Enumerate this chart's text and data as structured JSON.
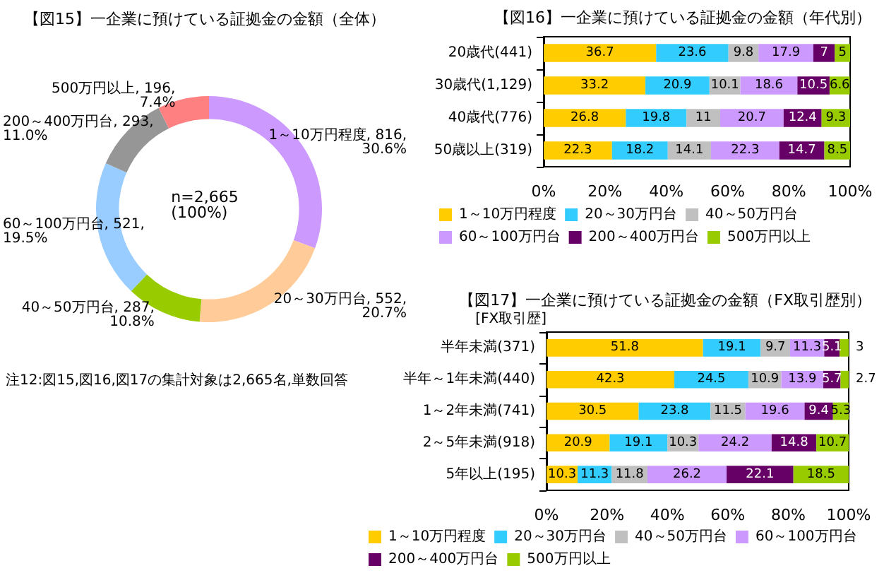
{
  "chart_data": [
    {
      "type": "donut",
      "title": "【図15】一企業に預けている証拠金の金額（全体）",
      "categories": [
        "1～10万円程度",
        "20～30万円台",
        "40～50万円台",
        "60～100万円台",
        "200～400万円台",
        "500万円以上"
      ],
      "values": [
        816,
        552,
        287,
        521,
        293,
        196
      ],
      "value_labels": [
        "816, 30.6%",
        "552, 20.7%",
        "287, 10.8%",
        "521, 19.5%",
        "293, 11.0%",
        "196, 7.4%"
      ],
      "colors": [
        "#cc99ff",
        "#ffcc99",
        "#99cc00",
        "#99ccff",
        "#969696",
        "#ff8080"
      ],
      "annotations": [
        "n=2,665\n(100%)",
        "注12:図15,図16,図17の集計対象は2,665名,単数回答"
      ]
    },
    {
      "type": "bar",
      "title": "【図16】一企業に預けている証拠金の金額（年代別）",
      "orientation": "horizontal",
      "stacked": true,
      "data_labels": true,
      "legend": "bottom",
      "categories": [
        "20歳代(441)",
        "30歳代(1,129)",
        "40歳代(776)",
        "50歳以上(319)"
      ],
      "series": [
        {
          "name": "1～10万円程度",
          "color": "#ffcc00",
          "values": [
            36.7,
            33.2,
            26.8,
            22.3
          ]
        },
        {
          "name": "20～30万円台",
          "color": "#33ccff",
          "values": [
            23.6,
            20.9,
            19.8,
            18.2
          ]
        },
        {
          "name": "40～50万円台",
          "color": "#c0c0c0",
          "values": [
            9.8,
            10.1,
            11,
            14.1
          ]
        },
        {
          "name": "60～100万円台",
          "color": "#cc99ff",
          "values": [
            17.9,
            18.6,
            20.7,
            22.3
          ]
        },
        {
          "name": "200～400万円台",
          "color": "#660066",
          "values": [
            7,
            10.5,
            12.4,
            14.7
          ]
        },
        {
          "name": "500万円以上",
          "color": "#99cc00",
          "values": [
            5,
            6.6,
            9.3,
            8.5
          ]
        }
      ],
      "xlim": [
        0,
        100
      ],
      "xticks": [
        {
          "value": 0,
          "label": "0%"
        },
        {
          "value": 20,
          "label": "20%"
        },
        {
          "value": 40,
          "label": "40%"
        },
        {
          "value": 60,
          "label": "60%"
        },
        {
          "value": 80,
          "label": "80%"
        },
        {
          "value": 100,
          "label": "100%"
        }
      ]
    },
    {
      "type": "bar",
      "title": "【図17】一企業に預けている証拠金の金額（FX取引歴別）",
      "ylabel": "[FX取引歴]",
      "orientation": "horizontal",
      "stacked": true,
      "data_labels": true,
      "legend": "bottom",
      "categories": [
        "半年未満(371)",
        "半年～1年未満(440)",
        "1～2年未満(741)",
        "2～5年未満(918)",
        "5年以上(195)"
      ],
      "series": [
        {
          "name": "1～10万円程度",
          "color": "#ffcc00",
          "values": [
            51.8,
            42.3,
            30.5,
            20.9,
            10.3
          ]
        },
        {
          "name": "20～30万円台",
          "color": "#33ccff",
          "values": [
            19.1,
            24.5,
            23.8,
            19.1,
            11.3
          ]
        },
        {
          "name": "40～50万円台",
          "color": "#c0c0c0",
          "values": [
            9.7,
            10.9,
            11.5,
            10.3,
            11.8
          ]
        },
        {
          "name": "60～100万円台",
          "color": "#cc99ff",
          "values": [
            11.3,
            13.9,
            19.6,
            24.2,
            26.2
          ]
        },
        {
          "name": "200～400万円台",
          "color": "#660066",
          "values": [
            5.1,
            5.7,
            9.4,
            14.8,
            22.1
          ]
        },
        {
          "name": "500万円以上",
          "color": "#99cc00",
          "values": [
            3,
            2.7,
            5.3,
            10.7,
            18.5
          ]
        }
      ],
      "xlim": [
        0,
        100
      ],
      "xticks": [
        {
          "value": 0,
          "label": "0%"
        },
        {
          "value": 20,
          "label": "20%"
        },
        {
          "value": 40,
          "label": "40%"
        },
        {
          "value": 60,
          "label": "60%"
        },
        {
          "value": 80,
          "label": "80%"
        },
        {
          "value": 100,
          "label": "100%"
        }
      ]
    }
  ]
}
